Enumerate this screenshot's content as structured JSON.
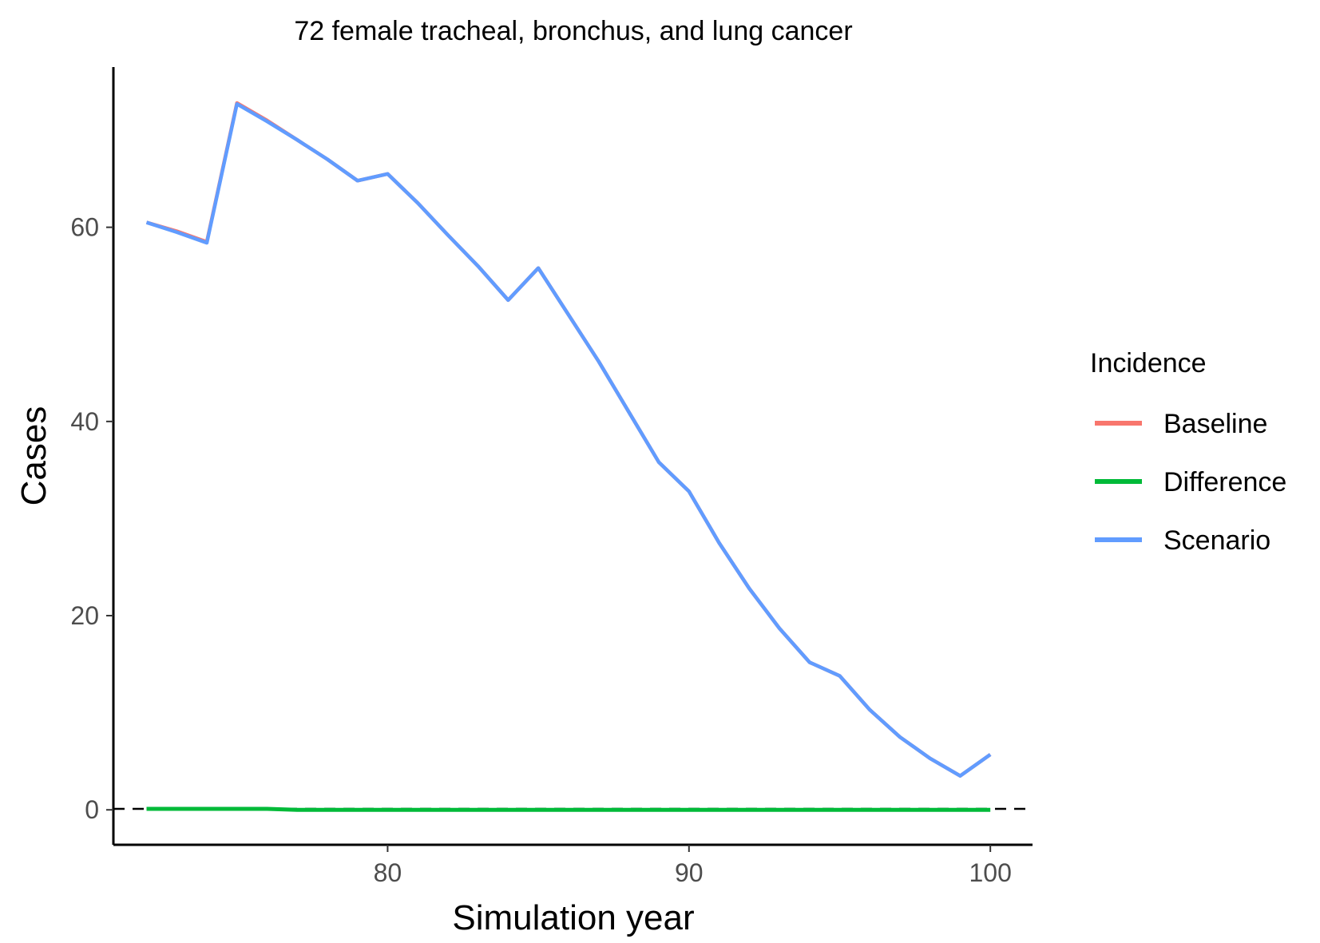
{
  "chart_data": {
    "type": "line",
    "title": "72 female tracheal, bronchus, and lung cancer",
    "xlabel": "Simulation year",
    "ylabel": "Cases",
    "xlim": [
      70.9,
      101.4
    ],
    "ylim": [
      -3.6,
      76.5
    ],
    "x_ticks": [
      80,
      90,
      100
    ],
    "y_ticks": [
      0,
      20,
      40,
      60
    ],
    "grid": false,
    "legend": {
      "title": "Incidence",
      "position": "right"
    },
    "reference_line": {
      "y": 0,
      "style": "dashed",
      "color": "#000000"
    },
    "series": [
      {
        "name": "Baseline",
        "color": "#F8766D",
        "x": [
          72,
          73,
          74,
          75,
          76,
          77,
          78,
          79,
          80,
          81,
          82,
          83,
          84,
          85,
          86,
          87,
          88,
          89,
          90,
          91,
          92,
          93,
          94,
          95,
          96,
          97,
          98,
          99,
          100
        ],
        "values": [
          60.5,
          59.6,
          58.5,
          72.8,
          71.0,
          69.0,
          67.0,
          64.8,
          65.5,
          62.5,
          59.2,
          56.0,
          52.5,
          55.8,
          51.0,
          46.2,
          41.0,
          35.8,
          32.8,
          27.5,
          22.8,
          18.7,
          15.2,
          13.8,
          10.3,
          7.5,
          5.3,
          3.5,
          5.7
        ]
      },
      {
        "name": "Difference",
        "color": "#00BA38",
        "x": [
          72,
          73,
          74,
          75,
          76,
          77,
          78,
          79,
          80,
          81,
          82,
          83,
          84,
          85,
          86,
          87,
          88,
          89,
          90,
          91,
          92,
          93,
          94,
          95,
          96,
          97,
          98,
          99,
          100
        ],
        "values": [
          0.1,
          0.1,
          0.1,
          0.1,
          0.1,
          0,
          0,
          0,
          0,
          0,
          0,
          0,
          0,
          0,
          0,
          0,
          0,
          0,
          0,
          0,
          0,
          0,
          0,
          0,
          0,
          0,
          0,
          0,
          0
        ]
      },
      {
        "name": "Scenario",
        "color": "#619CFF",
        "x": [
          72,
          73,
          74,
          75,
          76,
          77,
          78,
          79,
          80,
          81,
          82,
          83,
          84,
          85,
          86,
          87,
          88,
          89,
          90,
          91,
          92,
          93,
          94,
          95,
          96,
          97,
          98,
          99,
          100
        ],
        "values": [
          60.5,
          59.5,
          58.4,
          72.7,
          70.9,
          69.0,
          67.0,
          64.8,
          65.5,
          62.5,
          59.2,
          56.0,
          52.5,
          55.8,
          51.0,
          46.2,
          41.0,
          35.8,
          32.8,
          27.5,
          22.8,
          18.7,
          15.2,
          13.8,
          10.3,
          7.5,
          5.3,
          3.5,
          5.7
        ]
      }
    ]
  }
}
